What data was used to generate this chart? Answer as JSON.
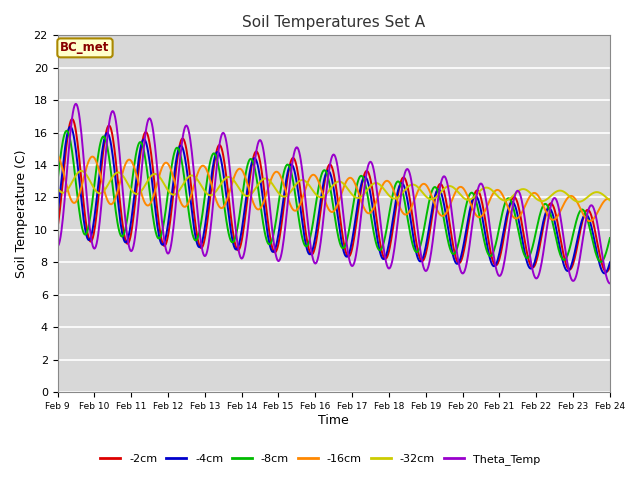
{
  "title": "Soil Temperatures Set A",
  "xlabel": "Time",
  "ylabel": "Soil Temperature (C)",
  "ylim": [
    0,
    22
  ],
  "annotation": "BC_met",
  "xtick_labels": [
    "Feb 9",
    "Feb 10",
    "Feb 11",
    "Feb 12",
    "Feb 13",
    "Feb 14",
    "Feb 15",
    "Feb 16",
    "Feb 17",
    "Feb 18",
    "Feb 19",
    "Feb 20",
    "Feb 21",
    "Feb 22",
    "Feb 23",
    "Feb 24"
  ],
  "series_names": [
    "-2cm",
    "-4cm",
    "-8cm",
    "-16cm",
    "-32cm",
    "Theta_Temp"
  ],
  "series_colors": [
    "#dd0000",
    "#0000cc",
    "#00bb00",
    "#ff8800",
    "#cccc00",
    "#9900cc"
  ],
  "series_lw": [
    1.4,
    1.4,
    1.4,
    1.4,
    1.4,
    1.4
  ],
  "bg_color": "#d8d8d8",
  "plot_bg_color": "#d8d8d8",
  "fig_color": "#ffffff",
  "grid_color": "#ffffff",
  "title_color": "#333333",
  "annotation_text_color": "#880000",
  "annotation_bg": "#ffffcc",
  "annotation_edge": "#aa8800"
}
